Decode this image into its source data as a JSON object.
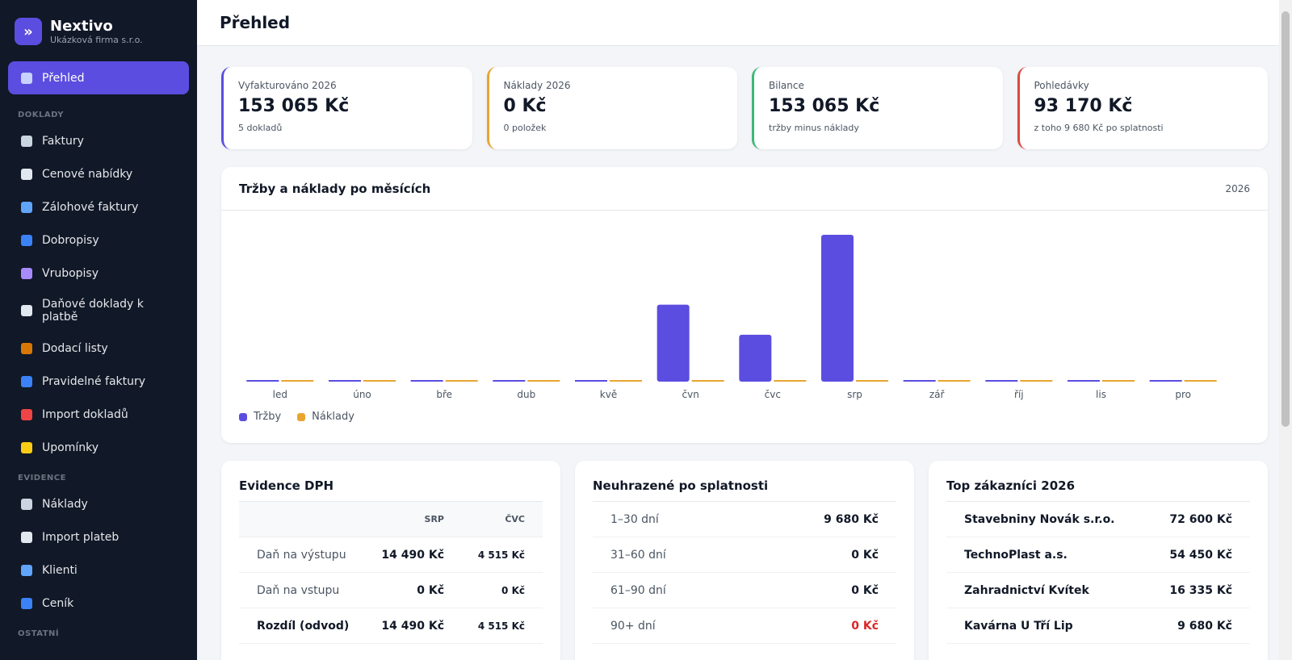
{
  "sidebar": {
    "brand": "Nextivo",
    "company": "Ukázková firma s.r.o.",
    "active": "Přehled",
    "sections": [
      {
        "title": "DOKLADY",
        "items": [
          "Faktury",
          "Cenové nabídky",
          "Zálohové faktury",
          "Dobropisy",
          "Vrubopisy",
          "Daňové doklady k platbě",
          "Dodací listy",
          "Pravidelné faktury",
          "Import dokladů",
          "Upomínky"
        ]
      },
      {
        "title": "EVIDENCE",
        "items": [
          "Náklady",
          "Import plateb",
          "Klienti",
          "Ceník"
        ]
      },
      {
        "title": "OSTATNÍ",
        "items": []
      }
    ]
  },
  "header": {
    "title": "Přehled"
  },
  "cards": [
    {
      "label": "Vyfakturováno 2026",
      "value": "153 065 Kč",
      "note": "5 dokladů",
      "color": "#5b4de0"
    },
    {
      "label": "Náklady 2026",
      "value": "0 Kč",
      "note": "0 položek",
      "color": "#e8a530"
    },
    {
      "label": "Bilance",
      "value": "153 065 Kč",
      "note": "tržby minus náklady",
      "color": "#3cb878"
    },
    {
      "label": "Pohledávky",
      "value": "93 170 Kč",
      "note": "z toho 9 680 Kč po splatnosti",
      "color": "#dc4a3e"
    }
  ],
  "chart_data": {
    "type": "bar",
    "title": "Tržby a náklady po měsících",
    "period": "2026",
    "categories": [
      "led",
      "úno",
      "bře",
      "dub",
      "kvě",
      "čvn",
      "čvc",
      "srp",
      "zář",
      "říj",
      "lis",
      "pro"
    ],
    "series": [
      {
        "name": "Tržby",
        "color": "#5b4de0",
        "values": [
          0,
          0,
          0,
          0,
          0,
          43500,
          26500,
          83000,
          0,
          0,
          0,
          0
        ]
      },
      {
        "name": "Náklady",
        "color": "#e8a530",
        "values": [
          0,
          0,
          0,
          0,
          0,
          0,
          0,
          0,
          0,
          0,
          0,
          0
        ]
      }
    ]
  },
  "vat": {
    "title": "Evidence DPH",
    "columns": [
      "SRP",
      "ČVC"
    ],
    "rows": [
      {
        "label": "Daň na výstupu",
        "values": [
          "14 490 Kč",
          "4 515 Kč"
        ]
      },
      {
        "label": "Daň na vstupu",
        "values": [
          "0 Kč",
          "0 Kč"
        ]
      },
      {
        "label": "Rozdíl (odvod)",
        "values": [
          "14 490 Kč",
          "4 515 Kč"
        ]
      }
    ]
  },
  "overdue": {
    "title": "Neuhrazené po splatnosti",
    "rows": [
      {
        "label": "1–30 dní",
        "amount": "9 680 Kč"
      },
      {
        "label": "31–60 dní",
        "amount": "0 Kč"
      },
      {
        "label": "61–90 dní",
        "amount": "0 Kč"
      },
      {
        "label": "90+ dní",
        "amount": "0 Kč"
      }
    ]
  },
  "top": {
    "title": "Top zákazníci 2026",
    "rows": [
      {
        "label": "Stavebniny Novák s.r.o.",
        "amount": "72 600 Kč"
      },
      {
        "label": "TechnoPlast a.s.",
        "amount": "54 450 Kč"
      },
      {
        "label": "Zahradnictví Kvítek",
        "amount": "16 335 Kč"
      },
      {
        "label": "Kavárna U Tří Lip",
        "amount": "9 680 Kč"
      }
    ]
  }
}
